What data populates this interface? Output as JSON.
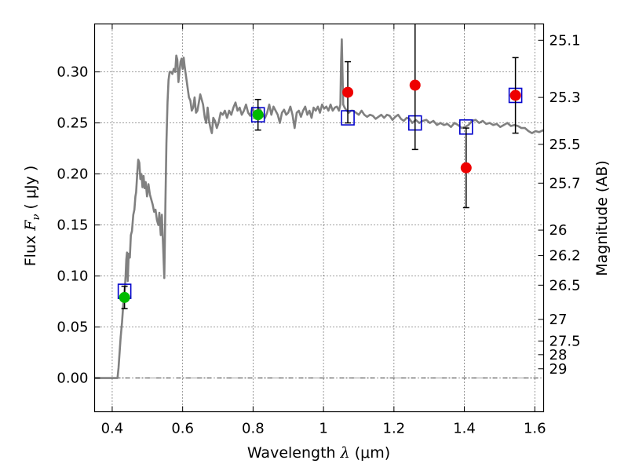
{
  "chart_data": {
    "type": "scatter",
    "xlabel": {
      "prefix": "Wavelength ",
      "symbol": "λ",
      "units": " (μm)"
    },
    "ylabel": {
      "prefix": "Flux ",
      "symbol": "F",
      "subscript": "ν",
      "units": " ( μJy )"
    },
    "ylabel_right": "Magnitude (AB)",
    "xlim": [
      0.35,
      1.625
    ],
    "ylim": [
      -0.033,
      0.347
    ],
    "grid": true,
    "legend": "none",
    "xticks": [
      0.4,
      0.6,
      0.8,
      1.0,
      1.2,
      1.4,
      1.6
    ],
    "xtick_labels": [
      "0.4",
      "0.6",
      "0.8",
      "1",
      "1.2",
      "1.4",
      "1.6"
    ],
    "yticks": [
      0.0,
      0.05,
      0.1,
      0.15,
      0.2,
      0.25,
      0.3
    ],
    "ytick_labels": [
      "0.00",
      "0.05",
      "0.10",
      "0.15",
      "0.20",
      "0.25",
      "0.30"
    ],
    "right_ticks": [
      {
        "label": "25.1",
        "flux": 0.331
      },
      {
        "label": "25.3",
        "flux": 0.275
      },
      {
        "label": "25.5",
        "flux": 0.229
      },
      {
        "label": "25.7",
        "flux": 0.191
      },
      {
        "label": "26",
        "flux": 0.145
      },
      {
        "label": "26.2",
        "flux": 0.12
      },
      {
        "label": "26.5",
        "flux": 0.091
      },
      {
        "label": "27",
        "flux": 0.0575
      },
      {
        "label": "27.5",
        "flux": 0.0363
      },
      {
        "label": "28",
        "flux": 0.0229
      },
      {
        "label": "29",
        "flux": 0.0091
      }
    ],
    "series": [
      {
        "kind": "model-sed",
        "color": "#808080",
        "points": [
          [
            0.35,
            0.0
          ],
          [
            0.4,
            0.0
          ],
          [
            0.415,
            0.0
          ],
          [
            0.418,
            0.01
          ],
          [
            0.424,
            0.04
          ],
          [
            0.428,
            0.055
          ],
          [
            0.432,
            0.075
          ],
          [
            0.436,
            0.088
          ],
          [
            0.438,
            0.1
          ],
          [
            0.44,
            0.116
          ],
          [
            0.442,
            0.123
          ],
          [
            0.444,
            0.095
          ],
          [
            0.447,
            0.122
          ],
          [
            0.45,
            0.118
          ],
          [
            0.453,
            0.14
          ],
          [
            0.456,
            0.144
          ],
          [
            0.46,
            0.16
          ],
          [
            0.463,
            0.165
          ],
          [
            0.466,
            0.178
          ],
          [
            0.468,
            0.182
          ],
          [
            0.471,
            0.2
          ],
          [
            0.474,
            0.214
          ],
          [
            0.477,
            0.211
          ],
          [
            0.48,
            0.195
          ],
          [
            0.483,
            0.2
          ],
          [
            0.486,
            0.187
          ],
          [
            0.489,
            0.198
          ],
          [
            0.492,
            0.186
          ],
          [
            0.495,
            0.192
          ],
          [
            0.499,
            0.178
          ],
          [
            0.503,
            0.19
          ],
          [
            0.507,
            0.18
          ],
          [
            0.511,
            0.175
          ],
          [
            0.515,
            0.17
          ],
          [
            0.519,
            0.163
          ],
          [
            0.523,
            0.165
          ],
          [
            0.527,
            0.155
          ],
          [
            0.531,
            0.15
          ],
          [
            0.534,
            0.162
          ],
          [
            0.538,
            0.14
          ],
          [
            0.541,
            0.16
          ],
          [
            0.545,
            0.125
          ],
          [
            0.548,
            0.098
          ],
          [
            0.551,
            0.17
          ],
          [
            0.554,
            0.23
          ],
          [
            0.557,
            0.27
          ],
          [
            0.56,
            0.292
          ],
          [
            0.563,
            0.3
          ],
          [
            0.567,
            0.3
          ],
          [
            0.571,
            0.298
          ],
          [
            0.575,
            0.303
          ],
          [
            0.579,
            0.3
          ],
          [
            0.582,
            0.316
          ],
          [
            0.585,
            0.312
          ],
          [
            0.588,
            0.29
          ],
          [
            0.591,
            0.3
          ],
          [
            0.594,
            0.31
          ],
          [
            0.597,
            0.313
          ],
          [
            0.6,
            0.303
          ],
          [
            0.603,
            0.314
          ],
          [
            0.606,
            0.305
          ],
          [
            0.61,
            0.295
          ],
          [
            0.614,
            0.285
          ],
          [
            0.618,
            0.275
          ],
          [
            0.622,
            0.272
          ],
          [
            0.626,
            0.262
          ],
          [
            0.63,
            0.265
          ],
          [
            0.634,
            0.275
          ],
          [
            0.638,
            0.26
          ],
          [
            0.642,
            0.262
          ],
          [
            0.646,
            0.27
          ],
          [
            0.65,
            0.278
          ],
          [
            0.654,
            0.273
          ],
          [
            0.658,
            0.268
          ],
          [
            0.663,
            0.255
          ],
          [
            0.667,
            0.25
          ],
          [
            0.671,
            0.265
          ],
          [
            0.675,
            0.252
          ],
          [
            0.679,
            0.245
          ],
          [
            0.683,
            0.24
          ],
          [
            0.687,
            0.255
          ],
          [
            0.692,
            0.252
          ],
          [
            0.697,
            0.245
          ],
          [
            0.702,
            0.25
          ],
          [
            0.708,
            0.26
          ],
          [
            0.714,
            0.258
          ],
          [
            0.72,
            0.262
          ],
          [
            0.726,
            0.255
          ],
          [
            0.732,
            0.262
          ],
          [
            0.738,
            0.258
          ],
          [
            0.744,
            0.265
          ],
          [
            0.75,
            0.27
          ],
          [
            0.756,
            0.262
          ],
          [
            0.762,
            0.265
          ],
          [
            0.768,
            0.258
          ],
          [
            0.774,
            0.262
          ],
          [
            0.78,
            0.268
          ],
          [
            0.786,
            0.26
          ],
          [
            0.792,
            0.257
          ],
          [
            0.798,
            0.265
          ],
          [
            0.804,
            0.26
          ],
          [
            0.81,
            0.255
          ],
          [
            0.816,
            0.265
          ],
          [
            0.822,
            0.262
          ],
          [
            0.828,
            0.258
          ],
          [
            0.834,
            0.255
          ],
          [
            0.84,
            0.26
          ],
          [
            0.846,
            0.268
          ],
          [
            0.852,
            0.258
          ],
          [
            0.858,
            0.266
          ],
          [
            0.864,
            0.262
          ],
          [
            0.87,
            0.258
          ],
          [
            0.876,
            0.25
          ],
          [
            0.882,
            0.26
          ],
          [
            0.888,
            0.263
          ],
          [
            0.894,
            0.258
          ],
          [
            0.9,
            0.26
          ],
          [
            0.906,
            0.266
          ],
          [
            0.912,
            0.258
          ],
          [
            0.918,
            0.245
          ],
          [
            0.924,
            0.26
          ],
          [
            0.93,
            0.262
          ],
          [
            0.936,
            0.256
          ],
          [
            0.942,
            0.262
          ],
          [
            0.948,
            0.266
          ],
          [
            0.954,
            0.258
          ],
          [
            0.96,
            0.262
          ],
          [
            0.966,
            0.255
          ],
          [
            0.972,
            0.265
          ],
          [
            0.978,
            0.262
          ],
          [
            0.984,
            0.266
          ],
          [
            0.99,
            0.26
          ],
          [
            0.996,
            0.268
          ],
          [
            1.002,
            0.264
          ],
          [
            1.008,
            0.266
          ],
          [
            1.014,
            0.262
          ],
          [
            1.02,
            0.268
          ],
          [
            1.026,
            0.262
          ],
          [
            1.032,
            0.265
          ],
          [
            1.038,
            0.266
          ],
          [
            1.044,
            0.262
          ],
          [
            1.048,
            0.268
          ],
          [
            1.05,
            0.31
          ],
          [
            1.052,
            0.332
          ],
          [
            1.054,
            0.3
          ],
          [
            1.056,
            0.268
          ],
          [
            1.06,
            0.265
          ],
          [
            1.066,
            0.262
          ],
          [
            1.072,
            0.26
          ],
          [
            1.078,
            0.262
          ],
          [
            1.084,
            0.262
          ],
          [
            1.092,
            0.26
          ],
          [
            1.1,
            0.258
          ],
          [
            1.108,
            0.262
          ],
          [
            1.116,
            0.258
          ],
          [
            1.124,
            0.256
          ],
          [
            1.132,
            0.258
          ],
          [
            1.14,
            0.257
          ],
          [
            1.148,
            0.254
          ],
          [
            1.156,
            0.256
          ],
          [
            1.164,
            0.258
          ],
          [
            1.172,
            0.255
          ],
          [
            1.18,
            0.258
          ],
          [
            1.188,
            0.257
          ],
          [
            1.196,
            0.253
          ],
          [
            1.204,
            0.256
          ],
          [
            1.212,
            0.258
          ],
          [
            1.22,
            0.254
          ],
          [
            1.228,
            0.252
          ],
          [
            1.236,
            0.255
          ],
          [
            1.244,
            0.254
          ],
          [
            1.252,
            0.25
          ],
          [
            1.262,
            0.253
          ],
          [
            1.272,
            0.25
          ],
          [
            1.282,
            0.252
          ],
          [
            1.292,
            0.253
          ],
          [
            1.302,
            0.25
          ],
          [
            1.312,
            0.252
          ],
          [
            1.322,
            0.248
          ],
          [
            1.332,
            0.25
          ],
          [
            1.342,
            0.248
          ],
          [
            1.352,
            0.249
          ],
          [
            1.362,
            0.246
          ],
          [
            1.372,
            0.25
          ],
          [
            1.382,
            0.248
          ],
          [
            1.392,
            0.245
          ],
          [
            1.402,
            0.246
          ],
          [
            1.412,
            0.248
          ],
          [
            1.422,
            0.252
          ],
          [
            1.432,
            0.253
          ],
          [
            1.442,
            0.25
          ],
          [
            1.452,
            0.252
          ],
          [
            1.462,
            0.249
          ],
          [
            1.472,
            0.25
          ],
          [
            1.482,
            0.248
          ],
          [
            1.492,
            0.249
          ],
          [
            1.502,
            0.246
          ],
          [
            1.512,
            0.248
          ],
          [
            1.522,
            0.25
          ],
          [
            1.532,
            0.247
          ],
          [
            1.542,
            0.248
          ],
          [
            1.552,
            0.247
          ],
          [
            1.562,
            0.245
          ],
          [
            1.572,
            0.245
          ],
          [
            1.582,
            0.242
          ],
          [
            1.592,
            0.24
          ],
          [
            1.602,
            0.242
          ],
          [
            1.612,
            0.241
          ],
          [
            1.625,
            0.243
          ]
        ]
      },
      {
        "kind": "model-band-squares",
        "color": "#0000cc",
        "points": [
          {
            "x": 0.435,
            "y": 0.085
          },
          {
            "x": 0.814,
            "y": 0.258
          },
          {
            "x": 1.069,
            "y": 0.255
          },
          {
            "x": 1.26,
            "y": 0.25
          },
          {
            "x": 1.405,
            "y": 0.246
          },
          {
            "x": 1.545,
            "y": 0.277
          }
        ]
      },
      {
        "kind": "optical-photometry",
        "color": "#00bb00",
        "points": [
          {
            "x": 0.435,
            "y": 0.079,
            "err": 0.011
          },
          {
            "x": 0.814,
            "y": 0.258,
            "err": 0.015
          }
        ]
      },
      {
        "kind": "nir-photometry",
        "color": "#ee0000",
        "points": [
          {
            "x": 1.069,
            "y": 0.28,
            "err": 0.03
          },
          {
            "x": 1.26,
            "y": 0.287,
            "err": 0.063
          },
          {
            "x": 1.405,
            "y": 0.206,
            "err": 0.039
          },
          {
            "x": 1.545,
            "y": 0.277,
            "err": 0.037
          }
        ]
      }
    ]
  }
}
